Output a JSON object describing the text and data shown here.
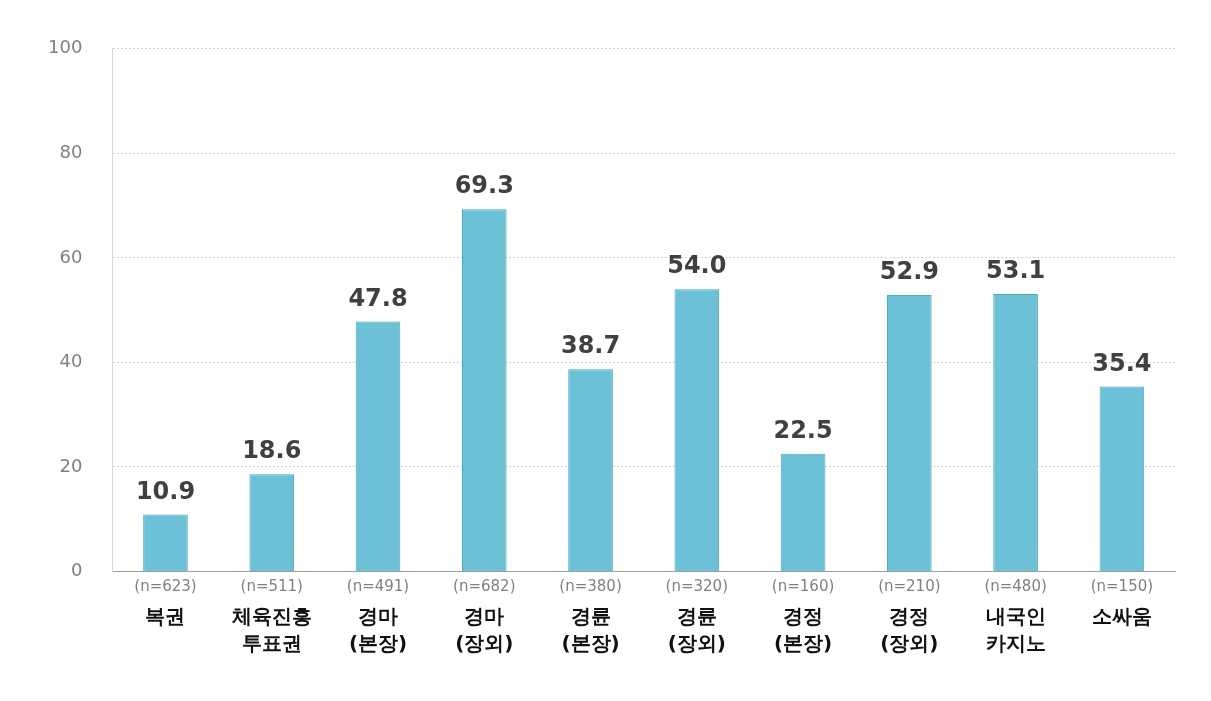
{
  "chart_data": {
    "type": "bar",
    "categories": [
      "(n=623)\n복권",
      "(n=511)\n체육진흥\n투표권",
      "(n=491)\n경마\n(본장)",
      "(n=682)\n경마\n(장외)",
      "(n=380)\n경륜\n(본장)",
      "(n=320)\n경륜\n(장외)",
      "(n=160)\n경정\n(본장)",
      "(n=210)\n경정\n(장외)",
      "(n=480)\n내국인\n카지노",
      "(n=150)\n소싸움"
    ],
    "values": [
      10.9,
      18.6,
      47.8,
      69.3,
      38.7,
      54.0,
      22.5,
      52.9,
      53.1,
      35.4
    ],
    "value_labels": [
      "10.9",
      "18.6",
      "47.8",
      "69.3",
      "38.7",
      "54.0",
      "22.5",
      "52.9",
      "53.1",
      "35.4"
    ],
    "color": "#6cc1d7",
    "ylim": [
      0,
      100
    ],
    "yticks": [
      0,
      20,
      40,
      60,
      80,
      100
    ],
    "grid": "y",
    "legend": false
  }
}
